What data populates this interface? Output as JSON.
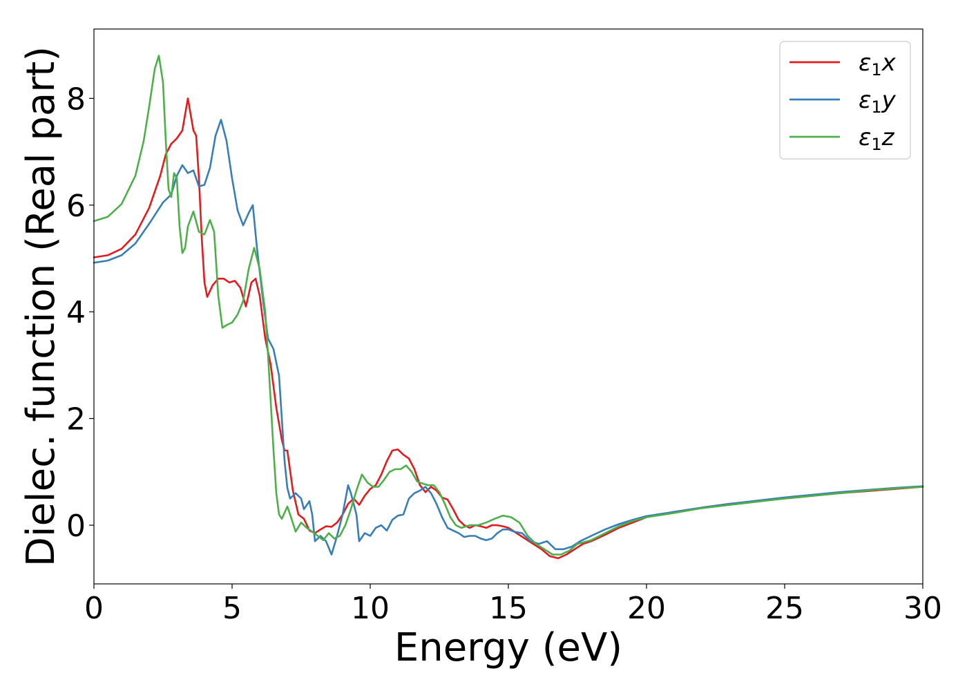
{
  "chart_data": {
    "type": "line",
    "title": "",
    "xlabel": "Energy (eV)",
    "ylabel": "Dielec. function (Real part)",
    "xlim": [
      0,
      30
    ],
    "ylim": [
      -1.1,
      9.3
    ],
    "xticks": [
      0,
      5,
      10,
      15,
      20,
      25,
      30
    ],
    "yticks": [
      0,
      2,
      4,
      6,
      8
    ],
    "grid": false,
    "legend_position": "top-right",
    "series": [
      {
        "name": "ε₁x",
        "legend_base": "ε",
        "legend_sub": "1",
        "legend_var": "x",
        "color": "#e41a1c",
        "points": [
          [
            0,
            5.02
          ],
          [
            0.5,
            5.06
          ],
          [
            1.0,
            5.18
          ],
          [
            1.5,
            5.45
          ],
          [
            2.0,
            5.95
          ],
          [
            2.4,
            6.55
          ],
          [
            2.6,
            6.95
          ],
          [
            2.8,
            7.15
          ],
          [
            3.0,
            7.25
          ],
          [
            3.2,
            7.4
          ],
          [
            3.4,
            8.0
          ],
          [
            3.5,
            7.7
          ],
          [
            3.6,
            7.4
          ],
          [
            3.7,
            7.3
          ],
          [
            3.8,
            6.5
          ],
          [
            3.9,
            5.4
          ],
          [
            4.0,
            4.55
          ],
          [
            4.1,
            4.28
          ],
          [
            4.3,
            4.5
          ],
          [
            4.5,
            4.62
          ],
          [
            4.7,
            4.62
          ],
          [
            4.9,
            4.55
          ],
          [
            5.1,
            4.58
          ],
          [
            5.3,
            4.45
          ],
          [
            5.5,
            4.1
          ],
          [
            5.7,
            4.55
          ],
          [
            5.85,
            4.62
          ],
          [
            6.0,
            4.3
          ],
          [
            6.2,
            3.5
          ],
          [
            6.4,
            3.0
          ],
          [
            6.6,
            2.2
          ],
          [
            6.8,
            1.6
          ],
          [
            6.9,
            1.4
          ],
          [
            7.0,
            1.4
          ],
          [
            7.2,
            0.65
          ],
          [
            7.4,
            0.2
          ],
          [
            7.6,
            0.12
          ],
          [
            7.8,
            -0.1
          ],
          [
            8.0,
            -0.15
          ],
          [
            8.2,
            -0.08
          ],
          [
            8.4,
            -0.02
          ],
          [
            8.6,
            -0.03
          ],
          [
            8.8,
            0.05
          ],
          [
            9.0,
            0.2
          ],
          [
            9.2,
            0.4
          ],
          [
            9.4,
            0.5
          ],
          [
            9.6,
            0.38
          ],
          [
            9.8,
            0.55
          ],
          [
            10.0,
            0.68
          ],
          [
            10.2,
            0.75
          ],
          [
            10.4,
            0.95
          ],
          [
            10.6,
            1.2
          ],
          [
            10.8,
            1.4
          ],
          [
            11.0,
            1.42
          ],
          [
            11.2,
            1.32
          ],
          [
            11.4,
            1.25
          ],
          [
            11.6,
            1.05
          ],
          [
            11.8,
            0.75
          ],
          [
            12.0,
            0.62
          ],
          [
            12.2,
            0.72
          ],
          [
            12.4,
            0.65
          ],
          [
            12.6,
            0.52
          ],
          [
            12.8,
            0.48
          ],
          [
            13.0,
            0.3
          ],
          [
            13.2,
            0.1
          ],
          [
            13.4,
            0.0
          ],
          [
            13.6,
            -0.05
          ],
          [
            13.8,
            0.0
          ],
          [
            14.0,
            -0.02
          ],
          [
            14.2,
            -0.05
          ],
          [
            14.4,
            0.0
          ],
          [
            14.6,
            0.0
          ],
          [
            14.8,
            -0.02
          ],
          [
            15.0,
            -0.05
          ],
          [
            15.3,
            -0.15
          ],
          [
            15.6,
            -0.25
          ],
          [
            15.9,
            -0.35
          ],
          [
            16.2,
            -0.45
          ],
          [
            16.5,
            -0.58
          ],
          [
            16.8,
            -0.62
          ],
          [
            17.1,
            -0.55
          ],
          [
            17.4,
            -0.45
          ],
          [
            17.7,
            -0.35
          ],
          [
            18.0,
            -0.3
          ],
          [
            18.5,
            -0.18
          ],
          [
            19.0,
            -0.05
          ],
          [
            19.5,
            0.05
          ],
          [
            20.0,
            0.15
          ],
          [
            21.0,
            0.25
          ],
          [
            22.0,
            0.33
          ],
          [
            23.0,
            0.4
          ],
          [
            24.0,
            0.45
          ],
          [
            25.0,
            0.5
          ],
          [
            26.0,
            0.55
          ],
          [
            27.0,
            0.6
          ],
          [
            28.0,
            0.64
          ],
          [
            29.0,
            0.68
          ],
          [
            30.0,
            0.72
          ]
        ]
      },
      {
        "name": "ε₁y",
        "legend_base": "ε",
        "legend_sub": "1",
        "legend_var": "y",
        "color": "#377eb8",
        "points": [
          [
            0,
            4.92
          ],
          [
            0.5,
            4.96
          ],
          [
            1.0,
            5.06
          ],
          [
            1.5,
            5.28
          ],
          [
            2.0,
            5.65
          ],
          [
            2.5,
            6.05
          ],
          [
            2.8,
            6.2
          ],
          [
            3.0,
            6.55
          ],
          [
            3.2,
            6.75
          ],
          [
            3.4,
            6.6
          ],
          [
            3.6,
            6.65
          ],
          [
            3.8,
            6.35
          ],
          [
            4.0,
            6.38
          ],
          [
            4.2,
            6.7
          ],
          [
            4.4,
            7.3
          ],
          [
            4.6,
            7.6
          ],
          [
            4.8,
            7.2
          ],
          [
            5.0,
            6.5
          ],
          [
            5.2,
            5.9
          ],
          [
            5.4,
            5.62
          ],
          [
            5.6,
            5.85
          ],
          [
            5.75,
            6.0
          ],
          [
            5.9,
            5.2
          ],
          [
            6.1,
            4.3
          ],
          [
            6.3,
            3.5
          ],
          [
            6.5,
            3.3
          ],
          [
            6.7,
            2.8
          ],
          [
            6.8,
            2.0
          ],
          [
            6.9,
            1.2
          ],
          [
            7.0,
            0.7
          ],
          [
            7.1,
            0.5
          ],
          [
            7.3,
            0.6
          ],
          [
            7.5,
            0.5
          ],
          [
            7.6,
            0.3
          ],
          [
            7.8,
            0.45
          ],
          [
            7.9,
            0.2
          ],
          [
            8.0,
            -0.3
          ],
          [
            8.2,
            -0.2
          ],
          [
            8.4,
            -0.3
          ],
          [
            8.6,
            -0.55
          ],
          [
            8.8,
            -0.2
          ],
          [
            9.0,
            0.2
          ],
          [
            9.2,
            0.75
          ],
          [
            9.3,
            0.6
          ],
          [
            9.5,
            0.2
          ],
          [
            9.6,
            -0.3
          ],
          [
            9.8,
            -0.15
          ],
          [
            10.0,
            -0.2
          ],
          [
            10.2,
            -0.05
          ],
          [
            10.4,
            0.0
          ],
          [
            10.6,
            -0.1
          ],
          [
            10.8,
            0.1
          ],
          [
            11.0,
            0.18
          ],
          [
            11.2,
            0.2
          ],
          [
            11.4,
            0.5
          ],
          [
            11.6,
            0.6
          ],
          [
            11.8,
            0.65
          ],
          [
            12.0,
            0.72
          ],
          [
            12.2,
            0.6
          ],
          [
            12.4,
            0.4
          ],
          [
            12.6,
            0.15
          ],
          [
            12.8,
            -0.05
          ],
          [
            13.0,
            -0.1
          ],
          [
            13.2,
            -0.15
          ],
          [
            13.4,
            -0.22
          ],
          [
            13.6,
            -0.2
          ],
          [
            13.8,
            -0.2
          ],
          [
            14.0,
            -0.25
          ],
          [
            14.2,
            -0.28
          ],
          [
            14.4,
            -0.25
          ],
          [
            14.6,
            -0.15
          ],
          [
            14.8,
            -0.08
          ],
          [
            15.0,
            -0.08
          ],
          [
            15.2,
            -0.12
          ],
          [
            15.5,
            -0.15
          ],
          [
            15.8,
            -0.3
          ],
          [
            16.1,
            -0.35
          ],
          [
            16.4,
            -0.3
          ],
          [
            16.7,
            -0.45
          ],
          [
            17.0,
            -0.45
          ],
          [
            17.3,
            -0.4
          ],
          [
            17.6,
            -0.3
          ],
          [
            18.0,
            -0.2
          ],
          [
            18.5,
            -0.08
          ],
          [
            19.0,
            0.02
          ],
          [
            19.5,
            0.1
          ],
          [
            20.0,
            0.17
          ],
          [
            21.0,
            0.25
          ],
          [
            22.0,
            0.33
          ],
          [
            23.0,
            0.4
          ],
          [
            24.0,
            0.46
          ],
          [
            25.0,
            0.52
          ],
          [
            26.0,
            0.57
          ],
          [
            27.0,
            0.62
          ],
          [
            28.0,
            0.66
          ],
          [
            29.0,
            0.7
          ],
          [
            30.0,
            0.73
          ]
        ]
      },
      {
        "name": "ε₁z",
        "legend_base": "ε",
        "legend_sub": "1",
        "legend_var": "z",
        "color": "#4daf4a",
        "points": [
          [
            0,
            5.7
          ],
          [
            0.5,
            5.78
          ],
          [
            1.0,
            6.02
          ],
          [
            1.5,
            6.55
          ],
          [
            1.8,
            7.2
          ],
          [
            2.0,
            7.85
          ],
          [
            2.2,
            8.55
          ],
          [
            2.35,
            8.8
          ],
          [
            2.5,
            8.3
          ],
          [
            2.6,
            7.2
          ],
          [
            2.7,
            6.3
          ],
          [
            2.8,
            6.15
          ],
          [
            2.9,
            6.6
          ],
          [
            3.0,
            6.5
          ],
          [
            3.1,
            5.6
          ],
          [
            3.2,
            5.1
          ],
          [
            3.3,
            5.2
          ],
          [
            3.4,
            5.6
          ],
          [
            3.6,
            5.88
          ],
          [
            3.8,
            5.5
          ],
          [
            4.0,
            5.45
          ],
          [
            4.2,
            5.72
          ],
          [
            4.35,
            5.5
          ],
          [
            4.5,
            4.3
          ],
          [
            4.65,
            3.7
          ],
          [
            4.8,
            3.75
          ],
          [
            5.0,
            3.8
          ],
          [
            5.2,
            3.95
          ],
          [
            5.4,
            4.2
          ],
          [
            5.6,
            4.8
          ],
          [
            5.8,
            5.2
          ],
          [
            6.0,
            4.8
          ],
          [
            6.2,
            4.0
          ],
          [
            6.3,
            3.2
          ],
          [
            6.4,
            2.3
          ],
          [
            6.5,
            1.4
          ],
          [
            6.6,
            0.6
          ],
          [
            6.7,
            0.2
          ],
          [
            6.8,
            0.12
          ],
          [
            7.0,
            0.35
          ],
          [
            7.1,
            0.2
          ],
          [
            7.3,
            -0.12
          ],
          [
            7.5,
            0.05
          ],
          [
            7.7,
            -0.05
          ],
          [
            7.9,
            -0.12
          ],
          [
            8.1,
            -0.2
          ],
          [
            8.3,
            -0.28
          ],
          [
            8.5,
            -0.15
          ],
          [
            8.7,
            -0.25
          ],
          [
            8.9,
            -0.2
          ],
          [
            9.1,
            0.0
          ],
          [
            9.3,
            0.3
          ],
          [
            9.5,
            0.65
          ],
          [
            9.7,
            0.95
          ],
          [
            9.9,
            0.8
          ],
          [
            10.1,
            0.72
          ],
          [
            10.3,
            0.72
          ],
          [
            10.5,
            0.85
          ],
          [
            10.7,
            1.0
          ],
          [
            10.9,
            1.05
          ],
          [
            11.1,
            1.05
          ],
          [
            11.3,
            1.12
          ],
          [
            11.5,
            1.0
          ],
          [
            11.7,
            0.82
          ],
          [
            11.9,
            0.78
          ],
          [
            12.1,
            0.75
          ],
          [
            12.3,
            0.75
          ],
          [
            12.5,
            0.62
          ],
          [
            12.7,
            0.4
          ],
          [
            12.9,
            0.15
          ],
          [
            13.1,
            0.0
          ],
          [
            13.3,
            -0.05
          ],
          [
            13.6,
            0.0
          ],
          [
            13.9,
            0.0
          ],
          [
            14.2,
            0.05
          ],
          [
            14.5,
            0.12
          ],
          [
            14.8,
            0.18
          ],
          [
            15.1,
            0.15
          ],
          [
            15.4,
            0.05
          ],
          [
            15.7,
            -0.2
          ],
          [
            16.0,
            -0.35
          ],
          [
            16.3,
            -0.45
          ],
          [
            16.6,
            -0.55
          ],
          [
            16.9,
            -0.55
          ],
          [
            17.2,
            -0.48
          ],
          [
            17.5,
            -0.35
          ],
          [
            18.0,
            -0.28
          ],
          [
            18.5,
            -0.15
          ],
          [
            19.0,
            -0.02
          ],
          [
            19.5,
            0.08
          ],
          [
            20.0,
            0.15
          ],
          [
            21.0,
            0.23
          ],
          [
            22.0,
            0.32
          ],
          [
            23.0,
            0.38
          ],
          [
            24.0,
            0.44
          ],
          [
            25.0,
            0.5
          ],
          [
            26.0,
            0.55
          ],
          [
            27.0,
            0.6
          ],
          [
            28.0,
            0.65
          ],
          [
            29.0,
            0.69
          ],
          [
            30.0,
            0.72
          ]
        ]
      }
    ]
  }
}
